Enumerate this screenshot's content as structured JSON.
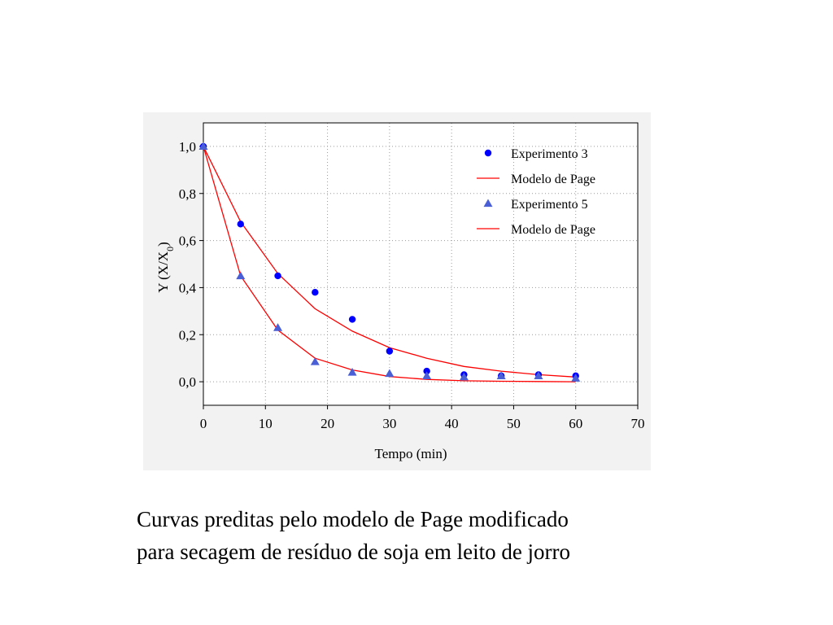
{
  "chart_data": {
    "type": "scatter",
    "xlabel": "Tempo (min)",
    "ylabel_main": "Y (X/X",
    "ylabel_sub": "0",
    "ylabel_close": ")",
    "xlim": [
      0,
      70
    ],
    "ylim": [
      -0.1,
      1.1
    ],
    "x_ticks": [
      0,
      10,
      20,
      30,
      40,
      50,
      60,
      70
    ],
    "x_tick_labels": [
      "0",
      "10",
      "20",
      "30",
      "40",
      "50",
      "60",
      "70"
    ],
    "y_ticks": [
      0.0,
      0.2,
      0.4,
      0.6,
      0.8,
      1.0
    ],
    "y_tick_labels": [
      "0,0",
      "0,2",
      "0,4",
      "0,6",
      "0,8",
      "1,0"
    ],
    "grid": true,
    "legend_position": "top-right",
    "series": [
      {
        "name": "Experimento 3",
        "kind": "points",
        "marker": "circle",
        "color": "#0000ff",
        "x": [
          0,
          6,
          12,
          18,
          24,
          30,
          36,
          42,
          48,
          54,
          60
        ],
        "y": [
          1.0,
          0.67,
          0.45,
          0.38,
          0.265,
          0.13,
          0.045,
          0.03,
          0.025,
          0.03,
          0.025
        ]
      },
      {
        "name": "Modelo de Page",
        "kind": "line",
        "color": "#ff0000",
        "x": [
          0,
          6,
          12,
          18,
          24,
          30,
          36,
          42,
          48,
          54,
          60
        ],
        "y": [
          1.0,
          0.68,
          0.46,
          0.31,
          0.215,
          0.145,
          0.1,
          0.065,
          0.045,
          0.03,
          0.02
        ]
      },
      {
        "name": "Experimento 5",
        "kind": "points",
        "marker": "triangle",
        "color": "#4a5fd6",
        "x": [
          0,
          6,
          12,
          18,
          24,
          30,
          36,
          42,
          48,
          54,
          60
        ],
        "y": [
          1.0,
          0.45,
          0.23,
          0.085,
          0.04,
          0.035,
          0.025,
          0.02,
          0.025,
          0.025,
          0.015
        ]
      },
      {
        "name": "Modelo de Page",
        "kind": "line",
        "color": "#ff0000",
        "x": [
          0,
          6,
          12,
          18,
          24,
          30,
          36,
          42,
          48,
          54,
          60
        ],
        "y": [
          1.0,
          0.45,
          0.22,
          0.1,
          0.05,
          0.022,
          0.01,
          0.004,
          0.002,
          0.001,
          0.0
        ]
      }
    ]
  },
  "caption": {
    "line1": "Curvas preditas pelo modelo de Page modificado",
    "line2": "para secagem de resíduo de soja em leito de jorro"
  }
}
